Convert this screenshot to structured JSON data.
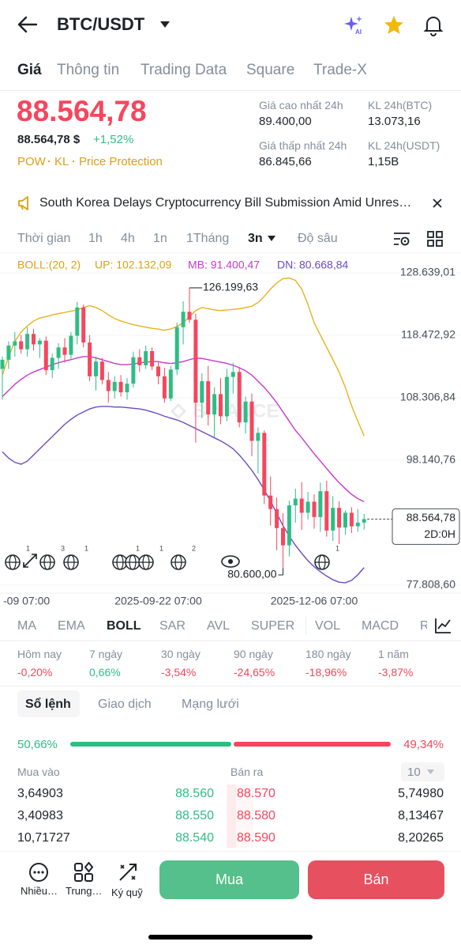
{
  "header": {
    "title": "BTC/USDT"
  },
  "tabs": [
    "Giá",
    "Thông tin",
    "Trading Data",
    "Square",
    "Trade-X"
  ],
  "price": {
    "last": "88.564,78",
    "usd": "88.564,78 $",
    "change": "+1,52%",
    "tags": [
      "POW",
      "KL",
      "Price Protection"
    ]
  },
  "stats": [
    {
      "label": "Giá cao nhất 24h",
      "value": "89.400,00"
    },
    {
      "label": "KL 24h(BTC)",
      "value": "13.073,16"
    },
    {
      "label": "Giá thấp nhất 24h",
      "value": "86.845,66"
    },
    {
      "label": "KL 24h(USDT)",
      "value": "1,15B"
    }
  ],
  "news": "South Korea Delays Cryptocurrency Bill Submission Amid Unres…",
  "intervals": [
    "Thời gian",
    "1h",
    "4h",
    "1n",
    "1Tháng",
    "3n",
    "Độ sâu"
  ],
  "chart_data": {
    "type": "candlestick",
    "indicator_labels": [
      "BOLL:(20, 2)",
      "UP: 102.132,09",
      "MB: 91.400,47",
      "DN: 80.668,84"
    ],
    "watermark": "BINANCE",
    "categories": [
      "-09 07:00",
      null,
      null,
      null,
      null,
      null,
      null,
      null,
      null,
      null,
      null,
      null,
      null,
      null,
      null,
      null,
      null,
      null,
      null,
      null,
      null,
      null,
      null,
      null,
      null,
      "2025-09-22 07:00",
      null,
      null,
      null,
      null,
      null,
      null,
      null,
      null,
      null,
      null,
      null,
      null,
      null,
      null,
      null,
      null,
      null,
      null,
      null,
      null,
      null,
      null,
      null,
      null,
      "2025-12-06 07:00",
      null,
      null,
      null,
      null,
      null,
      null,
      null,
      null
    ],
    "open": [
      113000,
      114500,
      116800,
      117500,
      116200,
      118700,
      117000,
      117600,
      112800,
      114800,
      116500,
      115300,
      118400,
      123000,
      117300,
      111800,
      114200,
      111200,
      109400,
      110900,
      109200,
      110600,
      114900,
      113600,
      115900,
      113400,
      111800,
      108200,
      112900,
      119800,
      122300,
      121000,
      107500,
      111000,
      105600,
      108900,
      105300,
      111700,
      112500,
      104300,
      107700,
      101300,
      102600,
      92400,
      90200,
      87100,
      84300,
      90800,
      91900,
      89600,
      91400,
      88900,
      93100,
      86700,
      90400,
      87200,
      89600,
      87400,
      88000
    ],
    "high": [
      115000,
      117500,
      119000,
      118500,
      119800,
      119500,
      118000,
      118300,
      115500,
      117200,
      118000,
      119000,
      123900,
      123500,
      118500,
      115000,
      114800,
      112500,
      111800,
      112000,
      111500,
      115800,
      116200,
      116800,
      116500,
      114200,
      113200,
      113500,
      120500,
      124000,
      126199.63,
      122000,
      112300,
      113500,
      110000,
      111500,
      113000,
      114000,
      113200,
      108500,
      109000,
      103500,
      103000,
      95500,
      92100,
      89500,
      91600,
      93500,
      94600,
      93000,
      92600,
      94500,
      94800,
      92300,
      91500,
      90000,
      90500,
      90200,
      89400
    ],
    "low": [
      108000,
      113000,
      115000,
      115500,
      115000,
      116000,
      114800,
      112000,
      111500,
      113000,
      114000,
      114500,
      117000,
      116500,
      111000,
      109500,
      110500,
      107500,
      108200,
      108500,
      108000,
      110000,
      112500,
      113000,
      112800,
      110500,
      107500,
      107800,
      112000,
      117000,
      120500,
      101000,
      105000,
      103800,
      101800,
      104000,
      104500,
      109000,
      103500,
      102500,
      98800,
      96000,
      91000,
      87500,
      83500,
      80600,
      82500,
      88000,
      86800,
      88500,
      87000,
      86500,
      85700,
      85000,
      84500,
      86000,
      86300,
      86500,
      86845.66
    ],
    "close": [
      114500,
      116800,
      117500,
      116200,
      118700,
      117000,
      117600,
      112800,
      114800,
      116500,
      115300,
      118400,
      123000,
      117300,
      111800,
      114200,
      111200,
      109400,
      110900,
      109200,
      110600,
      114900,
      113600,
      115900,
      113400,
      111800,
      108200,
      112900,
      119800,
      122300,
      121000,
      107500,
      111000,
      105600,
      108900,
      105300,
      111700,
      112500,
      104300,
      107700,
      101300,
      102600,
      92400,
      90200,
      87100,
      84300,
      90800,
      91900,
      89600,
      91400,
      88900,
      93100,
      86700,
      90400,
      87200,
      89600,
      87400,
      88000,
      88564.78
    ],
    "up_color": "#2ebd85",
    "down_color": "#f6465d",
    "series": [
      {
        "color": "#e8b21e",
        "values": [
          112000,
          115000,
          117500,
          119000,
          120000,
          120800,
          121300,
          121500,
          121800,
          122000,
          122200,
          122400,
          122600,
          123000,
          123300,
          123000,
          122500,
          121800,
          121200,
          120800,
          120500,
          120200,
          120000,
          119800,
          119600,
          119500,
          119300,
          119500,
          119900,
          120500,
          121500,
          122500,
          123000,
          122800,
          122600,
          122500,
          122600,
          122700,
          122800,
          123000,
          123200,
          123800,
          124800,
          126000,
          127000,
          127700,
          127800,
          127400,
          126000,
          123500,
          120500,
          118500,
          116500,
          114500,
          112500,
          110000,
          107000,
          104500,
          102132.09
        ]
      },
      {
        "color": "#c63bc6",
        "values": [
          108500,
          109500,
          110500,
          111300,
          112000,
          112500,
          112900,
          113300,
          113700,
          114000,
          114300,
          114500,
          114800,
          115000,
          115000,
          114800,
          114500,
          114200,
          113900,
          113700,
          113700,
          113800,
          114000,
          114100,
          114200,
          114200,
          114000,
          113900,
          114000,
          114200,
          114500,
          114800,
          114700,
          114500,
          114300,
          114100,
          113900,
          113600,
          113200,
          112700,
          112000,
          111000,
          110000,
          108800,
          107500,
          106000,
          104500,
          103000,
          101800,
          100500,
          99200,
          98000,
          96800,
          95600,
          94500,
          93500,
          92600,
          91900,
          91400.47
        ]
      },
      {
        "color": "#6a4bc4",
        "values": [
          99500,
          98500,
          97800,
          97500,
          98000,
          99000,
          100000,
          101000,
          102000,
          103000,
          104000,
          104800,
          105500,
          106000,
          106500,
          106800,
          106900,
          106900,
          106800,
          106800,
          106700,
          106600,
          106500,
          106300,
          106000,
          105700,
          105300,
          105000,
          104700,
          104300,
          103800,
          103300,
          102800,
          102300,
          101800,
          101300,
          100700,
          100000,
          99000,
          97800,
          96500,
          95000,
          93300,
          91500,
          89500,
          87500,
          85800,
          84300,
          83000,
          81800,
          80800,
          80000,
          79300,
          78700,
          78300,
          78200,
          78600,
          79500,
          80668.84
        ]
      }
    ],
    "ylim": [
      76521,
      131856
    ],
    "yticks": [
      {
        "value": 128639.01,
        "label": "128.639,01"
      },
      {
        "value": 118472.92,
        "label": "118.472,92"
      },
      {
        "value": 108306.84,
        "label": "108.306,84"
      },
      {
        "value": 98140.76,
        "label": "98.140,76"
      },
      {
        "value": 77808.6,
        "label": "77.808,60"
      }
    ],
    "grid": true,
    "max_label": {
      "index": 30,
      "value": 126199.63,
      "label": "126.199,63"
    },
    "min_label": {
      "index": 45,
      "value": 80600,
      "label": "80.600,00"
    },
    "current": {
      "value": 88564.78,
      "label": "88.564,78",
      "countdown": "2D:0H"
    },
    "event_counts": [
      "1",
      "3",
      "1",
      "1",
      "1",
      "2",
      "1"
    ]
  },
  "indicators": [
    "MA",
    "EMA",
    "BOLL",
    "SAR",
    "AVL",
    "SUPER",
    "VOL",
    "MACD",
    "R"
  ],
  "performance": [
    {
      "period": "Hôm nay",
      "change": "-0,20%"
    },
    {
      "period": "7 ngày",
      "change": "0,66%"
    },
    {
      "period": "30 ngày",
      "change": "-3,54%"
    },
    {
      "period": "90 ngày",
      "change": "-24,65%"
    },
    {
      "period": "180 ngày",
      "change": "-18,96%"
    },
    {
      "period": "1 năm",
      "change": "-3,87%"
    }
  ],
  "book_tabs": [
    "Sổ lệnh",
    "Giao dịch",
    "Mạng lưới"
  ],
  "ratio": {
    "values": [
      50.66,
      49.34
    ],
    "value_labels": [
      "50,66%",
      "49,34%"
    ]
  },
  "orderbook": {
    "headers": [
      "Mua vào",
      "Bán ra"
    ],
    "depth": "10",
    "rows": [
      [
        "3,64903",
        "88.560",
        "88.570",
        "5,74980"
      ],
      [
        "3,40983",
        "88.550",
        "88.580",
        "8,13467"
      ],
      [
        "10,71727",
        "88.540",
        "88.590",
        "8,20265"
      ]
    ]
  },
  "actions": [
    "Nhiều…",
    "Trung…",
    "Ký quỹ"
  ],
  "buy": "Mua",
  "sell": "Bán"
}
